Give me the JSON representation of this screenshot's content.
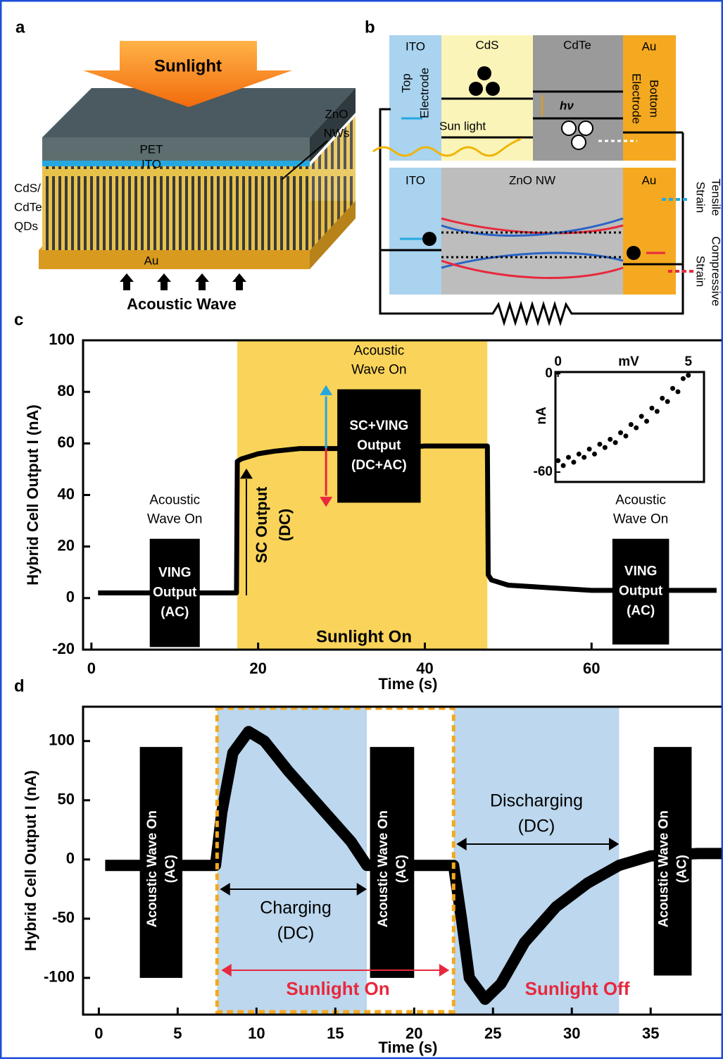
{
  "panels": {
    "a": {
      "label": "a",
      "sunlight": "Sunlight",
      "pet": "PET",
      "ito": "ITO",
      "zno": [
        "ZnO",
        "NWs"
      ],
      "qds": [
        "CdS/",
        "CdTe",
        "QDs"
      ],
      "au": "Au",
      "acoustic": "Acoustic Wave"
    },
    "b": {
      "label": "b",
      "top_layers": [
        "ITO",
        "CdS",
        "CdTe",
        "Au"
      ],
      "top_electrode": [
        "Top",
        "Electrode"
      ],
      "bottom_electrode": [
        "Bottom",
        "Electrode"
      ],
      "hv": "hν",
      "sun_light": "Sun light",
      "bottom_layers": [
        "ITO",
        "ZnO NW",
        "Au"
      ],
      "tensile": [
        "Tensile",
        "Strain"
      ],
      "compressive": [
        "Compressive",
        "Strain"
      ]
    }
  },
  "chart_data": [
    {
      "type": "line",
      "panel_label": "c",
      "y_label": "Hybrid Cell Output I (nA)",
      "x_label": "Time (s)",
      "xlim": [
        -1,
        75.6
      ],
      "ylim": [
        -20,
        100
      ],
      "xticks": [
        0,
        20,
        40,
        60
      ],
      "yticks": [
        -20,
        0,
        20,
        40,
        60,
        80,
        100
      ],
      "shaded": [
        {
          "x": [
            17.5,
            47.5
          ],
          "color": "#fad45a"
        }
      ],
      "series": [
        {
          "color": "#000000",
          "x": [
            0.8,
            17.4,
            17.5,
            18,
            20,
            22,
            25,
            30,
            35,
            40,
            45,
            47.5,
            47.6,
            48,
            50,
            55,
            60,
            65,
            70,
            75
          ],
          "values": [
            2,
            2,
            53,
            54,
            56,
            57,
            58,
            58,
            58,
            59,
            59,
            59,
            9,
            7,
            5,
            4,
            3,
            3,
            3,
            3
          ]
        }
      ],
      "bursts": [
        {
          "x": [
            7,
            13
          ],
          "range": [
            -19,
            23
          ]
        },
        {
          "x": [
            29.5,
            39.5
          ],
          "range": [
            37,
            81
          ]
        },
        {
          "x": [
            62.5,
            69.3
          ],
          "range": [
            -18,
            23
          ]
        }
      ],
      "burst_labels": [
        {
          "above": [
            "Acoustic",
            "Wave On"
          ],
          "inside": [
            "VING",
            "Output",
            "(AC)"
          ]
        },
        {
          "above": [
            "Acoustic",
            "Wave On"
          ],
          "inside": [
            "SC+VING",
            "Output",
            "(DC+AC)"
          ]
        },
        {
          "above": [
            "Acoustic",
            "Wave On"
          ],
          "inside": [
            "VING",
            "Output",
            "(AC)"
          ]
        }
      ],
      "sc_label": [
        "SC Output",
        "(DC)"
      ],
      "shaded_label": "Sunlight On"
    },
    {
      "type": "scatter",
      "x_label": "mV",
      "y_label": "nA",
      "xlim": [
        -0.1,
        5.6
      ],
      "ylim": [
        -66,
        1
      ],
      "xticks": [
        0,
        5
      ],
      "yticks": [
        -60,
        0
      ],
      "color": "#000000",
      "x": [
        0,
        0.2,
        0.4,
        0.6,
        0.8,
        1,
        1.2,
        1.4,
        1.6,
        1.8,
        2,
        2.2,
        2.4,
        2.6,
        2.8,
        3,
        3.2,
        3.4,
        3.6,
        3.8,
        4,
        4.2,
        4.4,
        4.6,
        4.8,
        5
      ],
      "values": [
        -53,
        -56,
        -51,
        -54,
        -49,
        -51,
        -46,
        -49,
        -43,
        -45,
        -40,
        -42,
        -36,
        -38,
        -31,
        -33,
        -26,
        -29,
        -21,
        -23,
        -15,
        -17,
        -9,
        -11,
        -3,
        -1
      ]
    },
    {
      "type": "line",
      "panel_label": "d",
      "y_label": "Hybrid Cell Output I (nA)",
      "x_label": "Time (s)",
      "xlim": [
        -1,
        39.5
      ],
      "ylim": [
        -131,
        129
      ],
      "xticks": [
        0,
        5,
        10,
        15,
        20,
        25,
        30,
        35
      ],
      "yticks": [
        -100,
        -50,
        0,
        50,
        100
      ],
      "shaded": [
        {
          "x": [
            7.5,
            17
          ],
          "color": "#bcd7ee"
        },
        {
          "x": [
            22.5,
            33
          ],
          "color": "#bcd7ee"
        }
      ],
      "dashed_box": [
        7.5,
        22.5
      ],
      "series": [
        {
          "color": "#000000",
          "x": [
            0.4,
            2.5,
            5.5,
            7.4,
            7.8,
            8.5,
            9.5,
            10.5,
            12,
            14,
            16,
            17,
            20.5,
            22.5,
            23,
            23.5,
            24.5,
            25.5,
            27,
            29,
            31,
            33,
            35,
            38,
            39.5
          ],
          "values": [
            -5,
            -5,
            -5,
            -5,
            40,
            90,
            108,
            100,
            75,
            45,
            15,
            -5,
            -5,
            -5,
            -50,
            -100,
            -118,
            -105,
            -70,
            -40,
            -20,
            -5,
            3,
            5,
            5
          ]
        }
      ],
      "bursts": [
        {
          "x": [
            2.6,
            5.3
          ],
          "range": [
            -100,
            95
          ]
        },
        {
          "x": [
            17.2,
            20
          ],
          "range": [
            -100,
            95
          ]
        },
        {
          "x": [
            35.2,
            37.6
          ],
          "range": [
            -98,
            95
          ]
        }
      ],
      "burst_labels": [
        [
          "Acoustic Wave On",
          "(AC)"
        ],
        [
          "Acoustic Wave On",
          "(AC)"
        ],
        [
          "Acoustic Wave On",
          "(AC)"
        ]
      ],
      "arrow_labels": [
        [
          "Charging",
          "(DC)"
        ],
        [
          "Discharging",
          "(DC)"
        ]
      ],
      "region_labels": [
        "Sunlight On",
        "Sunlight Off"
      ]
    }
  ]
}
